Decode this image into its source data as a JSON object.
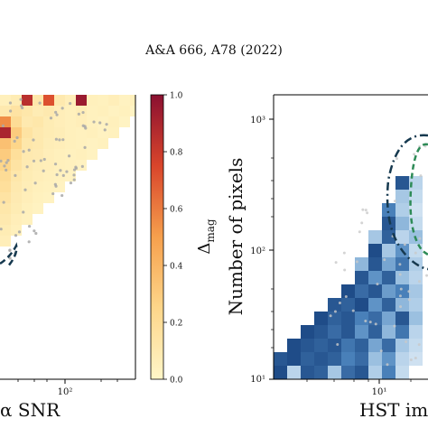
{
  "header": {
    "journal_ref": "A&A 666, A78 (2022)"
  },
  "colors": {
    "heat_low": "#fff6c8",
    "heat_high": "#8a1031",
    "blue_low": "#e3eef8",
    "blue_high": "#17427e",
    "scatter_points": "#a8a8a8",
    "contour_dark": "#16394f",
    "contour_green": "#2e8b57"
  },
  "chart_data": [
    {
      "type": "heatmap",
      "xlabel": "α SNR",
      "x_scale": "log",
      "x_tick_labels": [
        "10²"
      ],
      "colorbar": {
        "label": "Δ",
        "label_subscript": "mag",
        "ticks": [
          "0.0",
          "0.2",
          "0.4",
          "0.6",
          "0.8",
          "1.0"
        ],
        "range": [
          0.0,
          1.0
        ]
      },
      "cell_values": [
        {
          "c": 0,
          "r": 0,
          "v": 0.05
        },
        {
          "c": 1,
          "r": 0,
          "v": 0.08
        },
        {
          "c": 2,
          "r": 0,
          "v": 0.85
        },
        {
          "c": 3,
          "r": 0,
          "v": 0.12
        },
        {
          "c": 4,
          "r": 0,
          "v": 0.72
        },
        {
          "c": 5,
          "r": 0,
          "v": 0.1
        },
        {
          "c": 6,
          "r": 0,
          "v": 0.06
        },
        {
          "c": 7,
          "r": 0,
          "v": 0.95
        },
        {
          "c": 8,
          "r": 0,
          "v": 0.05
        },
        {
          "c": 9,
          "r": 0,
          "v": 0.04
        },
        {
          "c": 10,
          "r": 0,
          "v": 0.06
        },
        {
          "c": 11,
          "r": 0,
          "v": 0.03
        },
        {
          "c": 12,
          "r": 0,
          "v": 0.05
        },
        {
          "c": 13,
          "r": 0,
          "v": 0.02
        },
        {
          "c": 0,
          "r": 1,
          "v": 0.1
        },
        {
          "c": 1,
          "r": 1,
          "v": 0.15
        },
        {
          "c": 2,
          "r": 1,
          "v": 0.12
        },
        {
          "c": 3,
          "r": 1,
          "v": 0.08
        },
        {
          "c": 4,
          "r": 1,
          "v": 0.1
        },
        {
          "c": 5,
          "r": 1,
          "v": 0.06
        },
        {
          "c": 6,
          "r": 1,
          "v": 0.05
        },
        {
          "c": 7,
          "r": 1,
          "v": 0.07
        },
        {
          "c": 8,
          "r": 1,
          "v": 0.04
        },
        {
          "c": 9,
          "r": 1,
          "v": 0.05
        },
        {
          "c": 10,
          "r": 1,
          "v": 0.03
        },
        {
          "c": 11,
          "r": 1,
          "v": 0.04
        },
        {
          "c": 12,
          "r": 1,
          "v": 0.02
        },
        {
          "c": 0,
          "r": 2,
          "v": 0.55
        },
        {
          "c": 1,
          "r": 2,
          "v": 0.2
        },
        {
          "c": 2,
          "r": 2,
          "v": 0.1
        },
        {
          "c": 3,
          "r": 2,
          "v": 0.12
        },
        {
          "c": 4,
          "r": 2,
          "v": 0.08
        },
        {
          "c": 5,
          "r": 2,
          "v": 0.06
        },
        {
          "c": 6,
          "r": 2,
          "v": 0.05
        },
        {
          "c": 7,
          "r": 2,
          "v": 0.06
        },
        {
          "c": 8,
          "r": 2,
          "v": 0.04
        },
        {
          "c": 9,
          "r": 2,
          "v": 0.03
        },
        {
          "c": 10,
          "r": 2,
          "v": 0.05
        },
        {
          "c": 11,
          "r": 2,
          "v": 0.02
        },
        {
          "c": 0,
          "r": 3,
          "v": 0.9
        },
        {
          "c": 1,
          "r": 3,
          "v": 0.3
        },
        {
          "c": 2,
          "r": 3,
          "v": 0.15
        },
        {
          "c": 3,
          "r": 3,
          "v": 0.1
        },
        {
          "c": 4,
          "r": 3,
          "v": 0.08
        },
        {
          "c": 5,
          "r": 3,
          "v": 0.07
        },
        {
          "c": 6,
          "r": 3,
          "v": 0.05
        },
        {
          "c": 7,
          "r": 3,
          "v": 0.04
        },
        {
          "c": 8,
          "r": 3,
          "v": 0.05
        },
        {
          "c": 9,
          "r": 3,
          "v": 0.03
        },
        {
          "c": 10,
          "r": 3,
          "v": 0.04
        },
        {
          "c": 0,
          "r": 4,
          "v": 0.35
        },
        {
          "c": 1,
          "r": 4,
          "v": 0.25
        },
        {
          "c": 2,
          "r": 4,
          "v": 0.12
        },
        {
          "c": 3,
          "r": 4,
          "v": 0.1
        },
        {
          "c": 4,
          "r": 4,
          "v": 0.07
        },
        {
          "c": 5,
          "r": 4,
          "v": 0.06
        },
        {
          "c": 6,
          "r": 4,
          "v": 0.05
        },
        {
          "c": 7,
          "r": 4,
          "v": 0.04
        },
        {
          "c": 8,
          "r": 4,
          "v": 0.03
        },
        {
          "c": 9,
          "r": 4,
          "v": 0.04
        },
        {
          "c": 0,
          "r": 5,
          "v": 0.3
        },
        {
          "c": 1,
          "r": 5,
          "v": 0.18
        },
        {
          "c": 2,
          "r": 5,
          "v": 0.1
        },
        {
          "c": 3,
          "r": 5,
          "v": 0.09
        },
        {
          "c": 4,
          "r": 5,
          "v": 0.06
        },
        {
          "c": 5,
          "r": 5,
          "v": 0.05
        },
        {
          "c": 6,
          "r": 5,
          "v": 0.04
        },
        {
          "c": 7,
          "r": 5,
          "v": 0.05
        },
        {
          "c": 8,
          "r": 5,
          "v": 0.03
        },
        {
          "c": 0,
          "r": 6,
          "v": 0.25
        },
        {
          "c": 1,
          "r": 6,
          "v": 0.15
        },
        {
          "c": 2,
          "r": 6,
          "v": 0.09
        },
        {
          "c": 3,
          "r": 6,
          "v": 0.07
        },
        {
          "c": 4,
          "r": 6,
          "v": 0.06
        },
        {
          "c": 5,
          "r": 6,
          "v": 0.05
        },
        {
          "c": 6,
          "r": 6,
          "v": 0.04
        },
        {
          "c": 7,
          "r": 6,
          "v": 0.03
        },
        {
          "c": 0,
          "r": 7,
          "v": 0.2
        },
        {
          "c": 1,
          "r": 7,
          "v": 0.12
        },
        {
          "c": 2,
          "r": 7,
          "v": 0.08
        },
        {
          "c": 3,
          "r": 7,
          "v": 0.06
        },
        {
          "c": 4,
          "r": 7,
          "v": 0.05
        },
        {
          "c": 5,
          "r": 7,
          "v": 0.04
        },
        {
          "c": 6,
          "r": 7,
          "v": 0.03
        },
        {
          "c": 0,
          "r": 8,
          "v": 0.18
        },
        {
          "c": 1,
          "r": 8,
          "v": 0.1
        },
        {
          "c": 2,
          "r": 8,
          "v": 0.07
        },
        {
          "c": 3,
          "r": 8,
          "v": 0.05
        },
        {
          "c": 4,
          "r": 8,
          "v": 0.04
        },
        {
          "c": 5,
          "r": 8,
          "v": 0.03
        },
        {
          "c": 0,
          "r": 9,
          "v": 0.15
        },
        {
          "c": 1,
          "r": 9,
          "v": 0.09
        },
        {
          "c": 2,
          "r": 9,
          "v": 0.06
        },
        {
          "c": 3,
          "r": 9,
          "v": 0.04
        },
        {
          "c": 4,
          "r": 9,
          "v": 0.03
        },
        {
          "c": 0,
          "r": 10,
          "v": 0.12
        },
        {
          "c": 1,
          "r": 10,
          "v": 0.08
        },
        {
          "c": 2,
          "r": 10,
          "v": 0.05
        },
        {
          "c": 3,
          "r": 10,
          "v": 0.03
        },
        {
          "c": 0,
          "r": 11,
          "v": 0.1
        },
        {
          "c": 1,
          "r": 11,
          "v": 0.06
        },
        {
          "c": 2,
          "r": 11,
          "v": 0.04
        },
        {
          "c": 0,
          "r": 12,
          "v": 0.08
        },
        {
          "c": 1,
          "r": 12,
          "v": 0.05
        },
        {
          "c": 0,
          "r": 13,
          "v": 0.06
        }
      ]
    },
    {
      "type": "heatmap",
      "ylabel": "Number of pixels",
      "xlabel": "HST ima",
      "x_scale": "log",
      "y_scale": "log",
      "x_tick_labels": [
        "10¹"
      ],
      "y_tick_labels": [
        "10³",
        "10²",
        "10¹"
      ],
      "cells": [
        {
          "c": 0,
          "r": 0,
          "v": 0.95
        },
        {
          "c": 1,
          "r": 0,
          "v": 0.2
        },
        {
          "c": 2,
          "r": 0,
          "v": 0.9
        },
        {
          "c": 3,
          "r": 0,
          "v": 0.85
        },
        {
          "c": 4,
          "r": 0,
          "v": 0.3
        },
        {
          "c": 5,
          "r": 0,
          "v": 0.8
        },
        {
          "c": 6,
          "r": 0,
          "v": 0.9
        },
        {
          "c": 7,
          "r": 0,
          "v": 0.25
        },
        {
          "c": 8,
          "r": 0,
          "v": 0.7
        },
        {
          "c": 9,
          "r": 0,
          "v": 0.15
        },
        {
          "c": 0,
          "r": 1,
          "v": 0.9
        },
        {
          "c": 1,
          "r": 1,
          "v": 0.95
        },
        {
          "c": 2,
          "r": 1,
          "v": 0.85
        },
        {
          "c": 3,
          "r": 1,
          "v": 0.9
        },
        {
          "c": 4,
          "r": 1,
          "v": 0.85
        },
        {
          "c": 5,
          "r": 1,
          "v": 0.7
        },
        {
          "c": 6,
          "r": 1,
          "v": 0.8
        },
        {
          "c": 7,
          "r": 1,
          "v": 0.35
        },
        {
          "c": 8,
          "r": 1,
          "v": 0.6
        },
        {
          "c": 9,
          "r": 1,
          "v": 0.2
        },
        {
          "c": 10,
          "r": 1,
          "v": 0.1
        },
        {
          "c": 1,
          "r": 2,
          "v": 0.95
        },
        {
          "c": 2,
          "r": 2,
          "v": 0.9
        },
        {
          "c": 3,
          "r": 2,
          "v": 0.85
        },
        {
          "c": 4,
          "r": 2,
          "v": 0.9
        },
        {
          "c": 5,
          "r": 2,
          "v": 0.75
        },
        {
          "c": 6,
          "r": 2,
          "v": 0.85
        },
        {
          "c": 7,
          "r": 2,
          "v": 0.5
        },
        {
          "c": 8,
          "r": 2,
          "v": 0.8
        },
        {
          "c": 9,
          "r": 2,
          "v": 0.3
        },
        {
          "c": 10,
          "r": 2,
          "v": 0.15
        },
        {
          "c": 2,
          "r": 3,
          "v": 0.95
        },
        {
          "c": 3,
          "r": 3,
          "v": 0.9
        },
        {
          "c": 4,
          "r": 3,
          "v": 0.8
        },
        {
          "c": 5,
          "r": 3,
          "v": 0.9
        },
        {
          "c": 6,
          "r": 3,
          "v": 0.6
        },
        {
          "c": 7,
          "r": 3,
          "v": 0.85
        },
        {
          "c": 8,
          "r": 3,
          "v": 0.4
        },
        {
          "c": 9,
          "r": 3,
          "v": 0.75
        },
        {
          "c": 10,
          "r": 3,
          "v": 0.2
        },
        {
          "c": 3,
          "r": 4,
          "v": 0.95
        },
        {
          "c": 4,
          "r": 4,
          "v": 0.85
        },
        {
          "c": 5,
          "r": 4,
          "v": 0.9
        },
        {
          "c": 6,
          "r": 4,
          "v": 0.7
        },
        {
          "c": 7,
          "r": 4,
          "v": 0.8
        },
        {
          "c": 8,
          "r": 4,
          "v": 0.5
        },
        {
          "c": 9,
          "r": 4,
          "v": 0.9
        },
        {
          "c": 10,
          "r": 4,
          "v": 0.35
        },
        {
          "c": 4,
          "r": 5,
          "v": 0.9
        },
        {
          "c": 5,
          "r": 5,
          "v": 0.85
        },
        {
          "c": 6,
          "r": 5,
          "v": 0.95
        },
        {
          "c": 7,
          "r": 5,
          "v": 0.6
        },
        {
          "c": 8,
          "r": 5,
          "v": 0.85
        },
        {
          "c": 9,
          "r": 5,
          "v": 0.4
        },
        {
          "c": 10,
          "r": 5,
          "v": 0.25
        },
        {
          "c": 5,
          "r": 6,
          "v": 0.95
        },
        {
          "c": 6,
          "r": 6,
          "v": 0.8
        },
        {
          "c": 7,
          "r": 6,
          "v": 0.9
        },
        {
          "c": 8,
          "r": 6,
          "v": 0.55
        },
        {
          "c": 9,
          "r": 6,
          "v": 0.7
        },
        {
          "c": 10,
          "r": 6,
          "v": 0.3
        },
        {
          "c": 6,
          "r": 7,
          "v": 0.9
        },
        {
          "c": 7,
          "r": 7,
          "v": 0.6
        },
        {
          "c": 8,
          "r": 7,
          "v": 0.85
        },
        {
          "c": 9,
          "r": 7,
          "v": 0.35
        },
        {
          "c": 10,
          "r": 7,
          "v": 0.2
        },
        {
          "c": 6,
          "r": 8,
          "v": 0.4
        },
        {
          "c": 7,
          "r": 8,
          "v": 0.9
        },
        {
          "c": 8,
          "r": 8,
          "v": 0.5
        },
        {
          "c": 9,
          "r": 8,
          "v": 0.75
        },
        {
          "c": 10,
          "r": 8,
          "v": 0.25
        },
        {
          "c": 7,
          "r": 9,
          "v": 0.95
        },
        {
          "c": 8,
          "r": 9,
          "v": 0.3
        },
        {
          "c": 9,
          "r": 9,
          "v": 0.6
        },
        {
          "c": 10,
          "r": 9,
          "v": 0.15
        },
        {
          "c": 7,
          "r": 10,
          "v": 0.3
        },
        {
          "c": 8,
          "r": 10,
          "v": 0.85
        },
        {
          "c": 9,
          "r": 10,
          "v": 0.2
        },
        {
          "c": 10,
          "r": 10,
          "v": 0.35
        },
        {
          "c": 8,
          "r": 11,
          "v": 0.9
        },
        {
          "c": 9,
          "r": 11,
          "v": 0.4
        },
        {
          "c": 10,
          "r": 11,
          "v": 0.15
        },
        {
          "c": 8,
          "r": 12,
          "v": 0.7
        },
        {
          "c": 9,
          "r": 12,
          "v": 0.25
        },
        {
          "c": 10,
          "r": 12,
          "v": 0.1
        },
        {
          "c": 9,
          "r": 13,
          "v": 0.3
        },
        {
          "c": 10,
          "r": 13,
          "v": 0.15
        },
        {
          "c": 9,
          "r": 14,
          "v": 0.9
        },
        {
          "c": 10,
          "r": 14,
          "v": 0.2
        }
      ]
    }
  ]
}
